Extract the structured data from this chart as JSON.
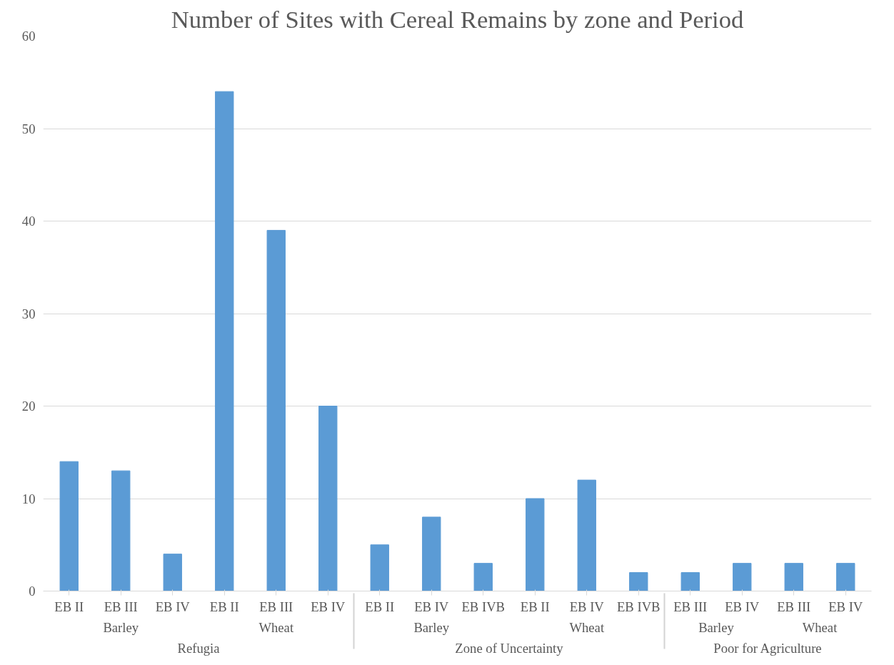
{
  "chart_data": {
    "type": "bar",
    "title": "Number of Sites with Cereal Remains by zone and Period",
    "categories": [
      "EB II",
      "EB III",
      "EB IV",
      "EB II",
      "EB III",
      "EB IV",
      "EB II",
      "EB IV",
      "EB IVB",
      "EB II",
      "EB IV",
      "EB IVB",
      "EB III",
      "EB IV",
      "EB III",
      "EB IV"
    ],
    "values": [
      14,
      13,
      4,
      54,
      39,
      20,
      5,
      8,
      3,
      10,
      12,
      2,
      2,
      3,
      3,
      3
    ],
    "color": "#5b9bd5",
    "annotations": [
      "Barley",
      "Wheat",
      "Barley",
      "Wheat",
      "Barley",
      "Wheat",
      "Refugia",
      "Zone of Uncertainty",
      "Poor for Agriculture"
    ],
    "ylim": [
      0,
      60
    ],
    "yticks": [
      0,
      10,
      20,
      30,
      40,
      50,
      60
    ],
    "grid": "y"
  }
}
